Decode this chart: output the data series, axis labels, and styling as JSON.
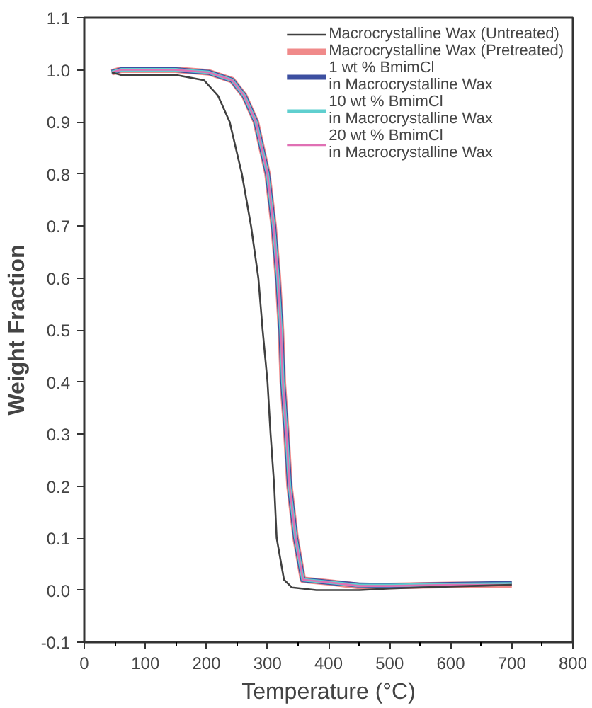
{
  "chart_data": {
    "type": "line",
    "xlabel": "Temperature (°C)",
    "ylabel": "Weight Fraction",
    "xlim": [
      0,
      800
    ],
    "xticks": [
      0,
      100,
      200,
      300,
      400,
      500,
      600,
      700,
      800
    ],
    "ylim": [
      -0.1,
      1.1
    ],
    "yticks": [
      {
        "value": -0.1,
        "label": "-0.1"
      },
      {
        "value": 0,
        "label": "0.0"
      },
      {
        "value": 0.1,
        "label": "0.1"
      },
      {
        "value": 0.2,
        "label": "0.2"
      },
      {
        "value": 0.3,
        "label": "0.3"
      },
      {
        "value": 0.4,
        "label": "0.4"
      },
      {
        "value": 0.5,
        "label": "0.5"
      },
      {
        "value": 0.6,
        "label": "0.6"
      },
      {
        "value": 0.7,
        "label": "0.7"
      },
      {
        "value": 0.8,
        "label": "0.8"
      },
      {
        "value": 0.9,
        "label": "0.9"
      },
      {
        "value": 1.0,
        "label": "1.0"
      },
      {
        "value": 1.1,
        "label": "1.1"
      }
    ],
    "grid": false,
    "legend": "top right",
    "marker": "none",
    "line_style": "solid",
    "series": [
      {
        "name": "Macrocrystalline Wax (Untreated)",
        "color": "#404040",
        "x": [
          45,
          60,
          100,
          150,
          196,
          219,
          238,
          258,
          273,
          285,
          292,
          300,
          305,
          311,
          315,
          327,
          340,
          380,
          450,
          500,
          600,
          700
        ],
        "values": [
          0.995,
          0.99,
          0.99,
          0.99,
          0.98,
          0.95,
          0.9,
          0.8,
          0.7,
          0.6,
          0.5,
          0.4,
          0.3,
          0.2,
          0.1,
          0.02,
          0.005,
          0.0,
          0.0,
          0.003,
          0.007,
          0.01
        ]
      },
      {
        "name": "Macrocrystalline Wax (Pretreated)",
        "color": "#f08a8a",
        "x": [
          45,
          60,
          100,
          150,
          204,
          242,
          262,
          281,
          300,
          310,
          317,
          322,
          325,
          331,
          336,
          346,
          358,
          400,
          450,
          500,
          600,
          700
        ],
        "values": [
          0.995,
          1.0,
          1.0,
          1.0,
          0.995,
          0.98,
          0.95,
          0.9,
          0.8,
          0.7,
          0.6,
          0.5,
          0.4,
          0.3,
          0.2,
          0.1,
          0.02,
          0.015,
          0.008,
          0.008,
          0.01,
          0.01
        ]
      },
      {
        "name": "1 wt % BmimCl\nin Macrocrystalline Wax",
        "color": "#3c4fa0",
        "x": [
          45,
          60,
          100,
          150,
          204,
          242,
          262,
          281,
          300,
          310,
          317,
          322,
          325,
          331,
          336,
          346,
          358,
          400,
          450,
          500,
          600,
          700
        ],
        "values": [
          0.995,
          1.0,
          1.0,
          1.0,
          0.995,
          0.98,
          0.95,
          0.9,
          0.8,
          0.7,
          0.6,
          0.5,
          0.4,
          0.3,
          0.2,
          0.1,
          0.02,
          0.015,
          0.01,
          0.009,
          0.011,
          0.013
        ]
      },
      {
        "name": "10 wt % BmimCl\nin Macrocrystalline Wax",
        "color": "#5fcfcf",
        "x": [
          45,
          60,
          100,
          150,
          204,
          242,
          262,
          281,
          300,
          310,
          317,
          322,
          325,
          331,
          336,
          346,
          358,
          400,
          450,
          500,
          600,
          700
        ],
        "values": [
          0.995,
          1.0,
          1.0,
          1.0,
          0.995,
          0.98,
          0.95,
          0.9,
          0.8,
          0.7,
          0.6,
          0.5,
          0.4,
          0.3,
          0.2,
          0.1,
          0.02,
          0.015,
          0.009,
          0.009,
          0.011,
          0.012
        ]
      },
      {
        "name": "20 wt % BmimCl\nin Macrocrystalline Wax",
        "color": "#e070b4",
        "x": [
          45,
          60,
          100,
          150,
          204,
          242,
          262,
          281,
          300,
          310,
          317,
          322,
          325,
          331,
          336,
          346,
          358,
          400,
          450,
          500,
          600,
          700
        ],
        "values": [
          0.995,
          1.0,
          1.0,
          1.0,
          0.995,
          0.98,
          0.95,
          0.9,
          0.8,
          0.7,
          0.6,
          0.5,
          0.4,
          0.3,
          0.2,
          0.1,
          0.02,
          0.015,
          0.008,
          0.008,
          0.01,
          0.01
        ]
      }
    ]
  }
}
